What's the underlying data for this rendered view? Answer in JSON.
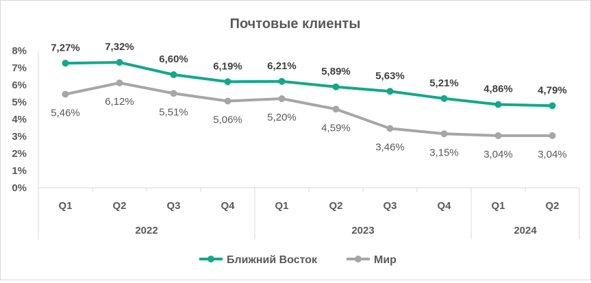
{
  "chart_data": {
    "type": "line",
    "title": "Почтовые клиенты",
    "xlabel": "",
    "ylabel": "",
    "ylim": [
      0,
      8
    ],
    "y_ticks": [
      "0%",
      "1%",
      "2%",
      "3%",
      "4%",
      "5%",
      "6%",
      "7%",
      "8%"
    ],
    "categories": [
      "Q1",
      "Q2",
      "Q3",
      "Q4",
      "Q1",
      "Q2",
      "Q3",
      "Q4",
      "Q1",
      "Q2"
    ],
    "groups": [
      {
        "label": "2022",
        "span": 4
      },
      {
        "label": "2023",
        "span": 4
      },
      {
        "label": "2024",
        "span": 2
      }
    ],
    "grid": false,
    "legend_position": "bottom",
    "series": [
      {
        "name": "Ближний Восток",
        "color": "#12a88a",
        "values": [
          7.27,
          7.32,
          6.6,
          6.19,
          6.21,
          5.89,
          5.63,
          5.21,
          4.86,
          4.79
        ],
        "labels": [
          "7,27%",
          "7,32%",
          "6,60%",
          "6,19%",
          "6,21%",
          "5,89%",
          "5,63%",
          "5,21%",
          "4,86%",
          "4,79%"
        ]
      },
      {
        "name": "Мир",
        "color": "#a6a6a6",
        "values": [
          5.46,
          6.12,
          5.51,
          5.06,
          5.2,
          4.59,
          3.46,
          3.15,
          3.04,
          3.04
        ],
        "labels": [
          "5,46%",
          "6,12%",
          "5,51%",
          "5,06%",
          "5,20%",
          "4,59%",
          "3,46%",
          "3,15%",
          "3,04%",
          "3,04%"
        ]
      }
    ]
  }
}
